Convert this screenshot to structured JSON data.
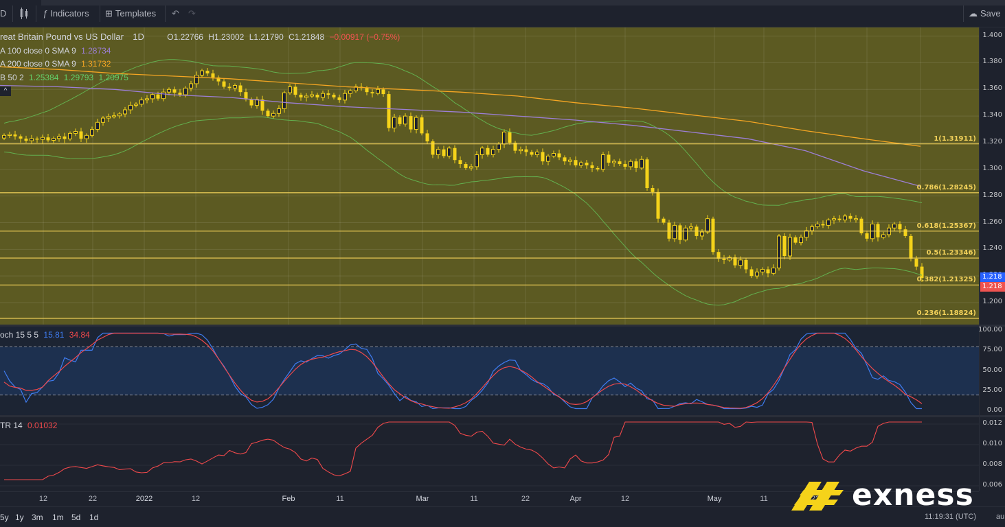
{
  "toolbar": {
    "symbol_stub": "D",
    "indicators_label": "Indicators",
    "templates_label": "Templates",
    "save_label": "Save"
  },
  "legend": {
    "title": "reat Britain Pound vs US Dollar",
    "interval": "1D",
    "open": "O1.22766",
    "high": "H1.23002",
    "low": "L1.21790",
    "close": "C1.21848",
    "change": "−0.00917 (−0.75%)",
    "ma100": {
      "label": "A 100 close 0 SMA 9",
      "value": "1.28734",
      "color": "#9c7fd6"
    },
    "ma200": {
      "label": "A 200 close 0 SMA 9",
      "value": "1.31732",
      "color": "#f5a623"
    },
    "bb": {
      "label": "B 50 2",
      "v1": "1.25384",
      "v2": "1.29793",
      "v3": "1.20975",
      "color": "#63d06b"
    }
  },
  "fib_levels": [
    {
      "label": "1(1.31911)",
      "price": 1.31911
    },
    {
      "label": "0.786(1.28245)",
      "price": 1.28245
    },
    {
      "label": "0.618(1.25367)",
      "price": 1.25367
    },
    {
      "label": "0.5(1.23346)",
      "price": 1.23346
    },
    {
      "label": "0.382(1.21325)",
      "price": 1.21325
    },
    {
      "label": "0.236(1.18824)",
      "price": 1.18824
    }
  ],
  "price_axis": [
    "1.400",
    "1.380",
    "1.360",
    "1.340",
    "1.320",
    "1.300",
    "1.280",
    "1.260",
    "1.240",
    "1.220",
    "1.200"
  ],
  "price_tags": [
    {
      "text": "1.218",
      "color": "#2962ff"
    },
    {
      "text": "1.218",
      "color": "#ef5350"
    }
  ],
  "stoch": {
    "label": "och 15 5 5",
    "k": "15.81",
    "d": "34.84",
    "k_color": "#3f7cf0",
    "d_color": "#f0494b",
    "axis": [
      "100.00",
      "75.00",
      "50.00",
      "25.00",
      "0.00"
    ]
  },
  "atr": {
    "label": "TR 14",
    "value": "0.01032",
    "color": "#f0494b",
    "axis": [
      "0.012",
      "0.010",
      "0.008",
      "0.006"
    ]
  },
  "time_axis": [
    "12",
    "22",
    "2022",
    "12",
    "Feb",
    "11",
    "Mar",
    "11",
    "22",
    "Apr",
    "12",
    "May",
    "11",
    "22"
  ],
  "range_buttons": [
    "5y",
    "1y",
    "3m",
    "1m",
    "5d",
    "1d"
  ],
  "clock": "11:19:31 (UTC)",
  "clock_suffix": "au",
  "brand": "exness",
  "chart_data": {
    "type": "candlestick",
    "title": "Great Britain Pound vs US Dollar",
    "interval": "1D",
    "ylim": [
      1.19,
      1.41
    ],
    "closes": [
      1.3255,
      1.3262,
      1.3248,
      1.3231,
      1.3215,
      1.3231,
      1.3225,
      1.324,
      1.3218,
      1.3232,
      1.3247,
      1.3228,
      1.327,
      1.3285,
      1.323,
      1.3255,
      1.33,
      1.3353,
      1.3385,
      1.3397,
      1.3402,
      1.3416,
      1.3447,
      1.3481,
      1.3489,
      1.3521,
      1.353,
      1.3562,
      1.3531,
      1.358,
      1.36,
      1.3576,
      1.356,
      1.361,
      1.3643,
      1.3707,
      1.374,
      1.372,
      1.369,
      1.366,
      1.362,
      1.361,
      1.363,
      1.358,
      1.3525,
      1.348,
      1.3525,
      1.344,
      1.34,
      1.342,
      1.3455,
      1.3575,
      1.362,
      1.356,
      1.354,
      1.355,
      1.356,
      1.354,
      1.357,
      1.356,
      1.354,
      1.352,
      1.357,
      1.359,
      1.362,
      1.361,
      1.358,
      1.357,
      1.36,
      1.3565,
      1.331,
      1.339,
      1.334,
      1.34,
      1.33,
      1.339,
      1.327,
      1.321,
      1.311,
      1.315,
      1.31,
      1.316,
      1.307,
      1.304,
      1.301,
      1.302,
      1.311,
      1.316,
      1.311,
      1.315,
      1.319,
      1.328,
      1.32,
      1.314,
      1.315,
      1.313,
      1.311,
      1.313,
      1.306,
      1.31,
      1.312,
      1.309,
      1.306,
      1.307,
      1.303,
      1.305,
      1.303,
      1.301,
      1.3,
      1.311,
      1.305,
      1.306,
      1.304,
      1.302,
      1.306,
      1.301,
      1.3075,
      1.286,
      1.283,
      1.263,
      1.26,
      1.248,
      1.258,
      1.247,
      1.256,
      1.257,
      1.25,
      1.253,
      1.263,
      1.238,
      1.233,
      1.232,
      1.234,
      1.228,
      1.232,
      1.225,
      1.22,
      1.223,
      1.225,
      1.222,
      1.226,
      1.25,
      1.235,
      1.249,
      1.245,
      1.249,
      1.254,
      1.257,
      1.259,
      1.258,
      1.262,
      1.263,
      1.262,
      1.265,
      1.263,
      1.263,
      1.252,
      1.248,
      1.259,
      1.249,
      1.251,
      1.256,
      1.259,
      1.255,
      1.25,
      1.233,
      1.227,
      1.2185
    ],
    "series": [
      {
        "name": "MA 100",
        "color": "#9c7fd6",
        "values": [
          1.363,
          1.362,
          1.36,
          1.356,
          1.354,
          1.35,
          1.347,
          1.345,
          1.343,
          1.34,
          1.337,
          1.333,
          1.328,
          1.323,
          1.314,
          1.299,
          1.2873
        ]
      },
      {
        "name": "MA 200",
        "color": "#f5a623",
        "values": [
          1.377,
          1.375,
          1.372,
          1.37,
          1.368,
          1.365,
          1.362,
          1.36,
          1.358,
          1.355,
          1.35,
          1.346,
          1.341,
          1.336,
          1.329,
          1.323,
          1.3173
        ]
      }
    ]
  }
}
